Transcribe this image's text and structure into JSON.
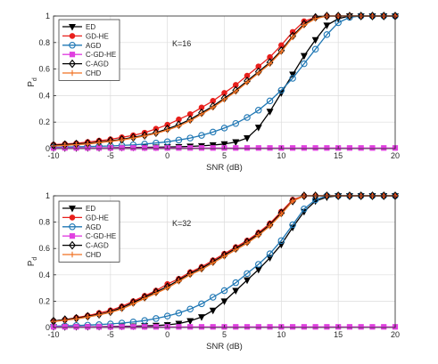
{
  "chart_data": [
    {
      "type": "line",
      "annotation": "K=16",
      "xlabel": "SNR (dB)",
      "ylabel": "P",
      "ylabel_sub": "d",
      "xlim": [
        -10,
        20
      ],
      "ylim": [
        0,
        1
      ],
      "xticks": [
        "-10",
        "-5",
        "0",
        "5",
        "10",
        "15",
        "20"
      ],
      "yticks": [
        "0",
        "0.2",
        "0.4",
        "0.6",
        "0.8",
        "1"
      ],
      "grid": true,
      "legend_position": "top-left",
      "x": [
        -10,
        -9,
        -8,
        -7,
        -6,
        -5,
        -4,
        -3,
        -2,
        -1,
        0,
        1,
        2,
        3,
        4,
        5,
        6,
        7,
        8,
        9,
        10,
        11,
        12,
        13,
        14,
        15,
        16,
        17,
        18,
        19,
        20
      ],
      "series": [
        {
          "name": "ED",
          "color": "#000000",
          "marker": "triangle-down",
          "values": [
            0.005,
            0.005,
            0.005,
            0.006,
            0.006,
            0.007,
            0.008,
            0.009,
            0.01,
            0.011,
            0.012,
            0.014,
            0.017,
            0.021,
            0.027,
            0.035,
            0.05,
            0.08,
            0.16,
            0.28,
            0.42,
            0.56,
            0.7,
            0.82,
            0.93,
            0.98,
            1.0,
            1.0,
            1.0,
            1.0,
            1.0
          ]
        },
        {
          "name": "GD-HE",
          "color": "#e8201c",
          "marker": "circle-filled",
          "values": [
            0.03,
            0.035,
            0.04,
            0.05,
            0.06,
            0.07,
            0.085,
            0.1,
            0.12,
            0.15,
            0.18,
            0.22,
            0.26,
            0.31,
            0.36,
            0.42,
            0.48,
            0.55,
            0.62,
            0.69,
            0.78,
            0.88,
            0.96,
            0.99,
            1.0,
            1.0,
            1.0,
            1.0,
            1.0,
            1.0,
            1.0
          ]
        },
        {
          "name": "AGD",
          "color": "#1f77b4",
          "marker": "circle-open",
          "values": [
            0.01,
            0.012,
            0.014,
            0.016,
            0.018,
            0.02,
            0.024,
            0.028,
            0.034,
            0.042,
            0.052,
            0.065,
            0.08,
            0.1,
            0.125,
            0.155,
            0.19,
            0.235,
            0.29,
            0.36,
            0.44,
            0.53,
            0.64,
            0.75,
            0.86,
            0.95,
            0.99,
            1.0,
            1.0,
            1.0,
            1.0
          ]
        },
        {
          "name": "C-GD-HE",
          "color": "#e040e0",
          "marker": "square",
          "values": [
            0.005,
            0.005,
            0.005,
            0.005,
            0.005,
            0.005,
            0.005,
            0.005,
            0.005,
            0.005,
            0.005,
            0.005,
            0.005,
            0.005,
            0.005,
            0.005,
            0.005,
            0.005,
            0.005,
            0.005,
            0.005,
            0.005,
            0.005,
            0.005,
            0.005,
            0.005,
            0.005,
            0.005,
            0.005,
            0.005,
            0.005
          ]
        },
        {
          "name": "C-AGD",
          "color": "#000000",
          "marker": "diamond",
          "values": [
            0.025,
            0.03,
            0.035,
            0.04,
            0.05,
            0.06,
            0.07,
            0.085,
            0.1,
            0.12,
            0.15,
            0.18,
            0.22,
            0.27,
            0.32,
            0.38,
            0.44,
            0.51,
            0.58,
            0.65,
            0.74,
            0.85,
            0.94,
            0.99,
            1.0,
            1.0,
            1.0,
            1.0,
            1.0,
            1.0,
            1.0
          ]
        },
        {
          "name": "CHD",
          "color": "#f07020",
          "marker": "plus",
          "values": [
            0.02,
            0.025,
            0.03,
            0.035,
            0.045,
            0.055,
            0.065,
            0.08,
            0.095,
            0.115,
            0.14,
            0.17,
            0.21,
            0.26,
            0.31,
            0.37,
            0.43,
            0.5,
            0.57,
            0.64,
            0.73,
            0.84,
            0.93,
            0.98,
            1.0,
            1.0,
            1.0,
            1.0,
            1.0,
            1.0,
            1.0
          ]
        }
      ]
    },
    {
      "type": "line",
      "annotation": "K=32",
      "xlabel": "SNR (dB)",
      "ylabel": "P",
      "ylabel_sub": "d",
      "xlim": [
        -10,
        20
      ],
      "ylim": [
        0,
        1
      ],
      "xticks": [
        "-10",
        "-5",
        "0",
        "5",
        "10",
        "15",
        "20"
      ],
      "yticks": [
        "0",
        "0.2",
        "0.4",
        "0.6",
        "0.8",
        "1"
      ],
      "grid": true,
      "legend_position": "top-left",
      "x": [
        -10,
        -9,
        -8,
        -7,
        -6,
        -5,
        -4,
        -3,
        -2,
        -1,
        0,
        1,
        2,
        3,
        4,
        5,
        6,
        7,
        8,
        9,
        10,
        11,
        12,
        13,
        14,
        15,
        16,
        17,
        18,
        19,
        20
      ],
      "series": [
        {
          "name": "ED",
          "color": "#000000",
          "marker": "triangle-down",
          "values": [
            0.005,
            0.005,
            0.006,
            0.006,
            0.007,
            0.008,
            0.009,
            0.01,
            0.012,
            0.015,
            0.02,
            0.03,
            0.05,
            0.08,
            0.13,
            0.2,
            0.28,
            0.36,
            0.44,
            0.53,
            0.63,
            0.76,
            0.88,
            0.96,
            0.99,
            1.0,
            1.0,
            1.0,
            1.0,
            1.0,
            1.0
          ]
        },
        {
          "name": "GD-HE",
          "color": "#e8201c",
          "marker": "circle-filled",
          "values": [
            0.05,
            0.06,
            0.075,
            0.09,
            0.11,
            0.13,
            0.16,
            0.2,
            0.24,
            0.28,
            0.33,
            0.37,
            0.42,
            0.46,
            0.51,
            0.56,
            0.61,
            0.66,
            0.72,
            0.79,
            0.88,
            0.97,
            1.0,
            1.0,
            1.0,
            1.0,
            1.0,
            1.0,
            1.0,
            1.0,
            1.0
          ]
        },
        {
          "name": "AGD",
          "color": "#1f77b4",
          "marker": "circle-open",
          "values": [
            0.01,
            0.012,
            0.015,
            0.018,
            0.022,
            0.027,
            0.034,
            0.042,
            0.053,
            0.068,
            0.087,
            0.11,
            0.14,
            0.18,
            0.23,
            0.28,
            0.34,
            0.41,
            0.48,
            0.56,
            0.66,
            0.78,
            0.9,
            0.97,
            1.0,
            1.0,
            1.0,
            1.0,
            1.0,
            1.0,
            1.0
          ]
        },
        {
          "name": "C-GD-HE",
          "color": "#e040e0",
          "marker": "square",
          "values": [
            0.005,
            0.005,
            0.005,
            0.005,
            0.005,
            0.005,
            0.005,
            0.005,
            0.005,
            0.005,
            0.005,
            0.005,
            0.005,
            0.005,
            0.005,
            0.005,
            0.005,
            0.005,
            0.005,
            0.005,
            0.005,
            0.005,
            0.005,
            0.005,
            0.005,
            0.005,
            0.005,
            0.005,
            0.005,
            0.005,
            0.005
          ]
        },
        {
          "name": "C-AGD",
          "color": "#000000",
          "marker": "diamond",
          "values": [
            0.05,
            0.06,
            0.07,
            0.085,
            0.1,
            0.12,
            0.15,
            0.19,
            0.23,
            0.27,
            0.31,
            0.36,
            0.41,
            0.45,
            0.5,
            0.55,
            0.6,
            0.65,
            0.71,
            0.78,
            0.87,
            0.96,
            1.0,
            1.0,
            1.0,
            1.0,
            1.0,
            1.0,
            1.0,
            1.0,
            1.0
          ]
        },
        {
          "name": "CHD",
          "color": "#f07020",
          "marker": "plus",
          "values": [
            0.045,
            0.055,
            0.065,
            0.08,
            0.095,
            0.115,
            0.14,
            0.18,
            0.22,
            0.26,
            0.3,
            0.35,
            0.4,
            0.44,
            0.49,
            0.54,
            0.59,
            0.64,
            0.7,
            0.77,
            0.86,
            0.96,
            1.0,
            1.0,
            1.0,
            1.0,
            1.0,
            1.0,
            1.0,
            1.0,
            1.0
          ]
        }
      ]
    }
  ]
}
